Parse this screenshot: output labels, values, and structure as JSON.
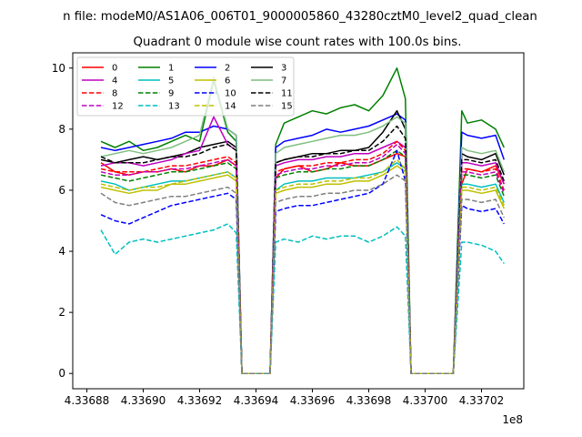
{
  "chart_data": {
    "type": "line",
    "suptitle": "n file: modeM0/AS1A06_006T01_9000005860_43280cztM0_level2_quad_clean",
    "title": "Quadrant 0 module wise count rates with 100.0s bins.",
    "xlabel": "",
    "ylabel": "",
    "x_offset_label": "1e8",
    "xlim": [
      433687500,
      433703500
    ],
    "ylim": [
      -0.5,
      10.5
    ],
    "xticks": [
      {
        "v": 433688000,
        "label": "4.33688"
      },
      {
        "v": 433690000,
        "label": "4.33690"
      },
      {
        "v": 433692000,
        "label": "4.33692"
      },
      {
        "v": 433694000,
        "label": "4.33694"
      },
      {
        "v": 433696000,
        "label": "4.33696"
      },
      {
        "v": 433698000,
        "label": "4.33698"
      },
      {
        "v": 433700000,
        "label": "4.33700"
      },
      {
        "v": 433702000,
        "label": "4.33702"
      }
    ],
    "yticks": [
      {
        "v": 0,
        "label": "0"
      },
      {
        "v": 2,
        "label": "2"
      },
      {
        "v": 4,
        "label": "4"
      },
      {
        "v": 6,
        "label": "6"
      },
      {
        "v": 8,
        "label": "8"
      },
      {
        "v": 10,
        "label": "10"
      }
    ],
    "legend": {
      "position": "top-left",
      "columns": 4
    },
    "grid": false,
    "x": [
      433688500,
      433689000,
      433689500,
      433690000,
      433690500,
      433691000,
      433691500,
      433692000,
      433692500,
      433693000,
      433693300,
      433693500,
      433694000,
      433694500,
      433694700,
      433695000,
      433695500,
      433696000,
      433696500,
      433697000,
      433697500,
      433698000,
      433698500,
      433699000,
      433699300,
      433699500,
      433700000,
      433700500,
      433701000,
      433701300,
      433701500,
      433702000,
      433702500,
      433702800
    ],
    "series": [
      {
        "name": "0",
        "color": "#ff0000",
        "dash": "solid",
        "values": [
          6.9,
          6.6,
          6.5,
          6.6,
          6.6,
          6.7,
          6.6,
          6.8,
          6.8,
          7.0,
          6.8,
          0,
          0,
          0,
          6.4,
          6.7,
          6.8,
          6.6,
          6.7,
          6.9,
          6.8,
          6.8,
          7.0,
          7.2,
          7.1,
          0,
          0,
          0,
          0,
          6.2,
          6.7,
          6.6,
          6.8,
          6.2
        ]
      },
      {
        "name": "1",
        "color": "#008000",
        "dash": "solid",
        "values": [
          7.6,
          7.4,
          7.6,
          7.3,
          7.4,
          7.6,
          7.8,
          7.6,
          9.6,
          7.9,
          7.6,
          0,
          0,
          0,
          7.5,
          8.2,
          8.4,
          8.6,
          8.5,
          8.7,
          8.8,
          8.6,
          9.1,
          10.0,
          9.0,
          0,
          0,
          0,
          0,
          8.6,
          8.2,
          8.3,
          8.0,
          7.4
        ]
      },
      {
        "name": "2",
        "color": "#0000ff",
        "dash": "solid",
        "values": [
          7.4,
          7.3,
          7.4,
          7.5,
          7.6,
          7.7,
          7.9,
          7.9,
          8.1,
          8.0,
          7.8,
          0,
          0,
          0,
          7.4,
          7.6,
          7.7,
          7.8,
          8.0,
          7.9,
          8.0,
          8.1,
          8.3,
          8.5,
          8.3,
          0,
          0,
          0,
          0,
          7.9,
          7.8,
          7.7,
          7.8,
          7.0
        ]
      },
      {
        "name": "3",
        "color": "#000000",
        "dash": "solid",
        "values": [
          7.0,
          6.9,
          7.0,
          7.1,
          7.0,
          7.1,
          7.2,
          7.4,
          7.5,
          7.6,
          7.4,
          0,
          0,
          0,
          6.9,
          7.0,
          7.1,
          7.2,
          7.2,
          7.3,
          7.3,
          7.4,
          7.9,
          8.6,
          8.0,
          0,
          0,
          0,
          0,
          7.2,
          7.1,
          7.0,
          7.2,
          6.5
        ]
      },
      {
        "name": "4",
        "color": "#bf00bf",
        "dash": "solid",
        "values": [
          6.8,
          6.9,
          6.9,
          6.8,
          6.9,
          7.0,
          7.2,
          7.3,
          8.4,
          7.5,
          7.3,
          0,
          0,
          0,
          6.8,
          6.9,
          7.0,
          7.0,
          7.1,
          7.1,
          7.2,
          7.2,
          7.4,
          7.6,
          7.4,
          0,
          0,
          0,
          0,
          6.9,
          6.9,
          6.8,
          6.9,
          6.2
        ]
      },
      {
        "name": "5",
        "color": "#00bfbf",
        "dash": "solid",
        "values": [
          6.3,
          6.2,
          6.0,
          6.1,
          6.2,
          6.3,
          6.3,
          6.4,
          6.5,
          6.6,
          6.4,
          0,
          0,
          0,
          6.0,
          6.2,
          6.3,
          6.3,
          6.4,
          6.4,
          6.4,
          6.5,
          6.6,
          6.9,
          6.7,
          0,
          0,
          0,
          0,
          6.2,
          6.2,
          6.1,
          6.2,
          5.6
        ]
      },
      {
        "name": "6",
        "color": "#bfbf00",
        "dash": "solid",
        "values": [
          6.1,
          6.0,
          5.9,
          6.0,
          6.0,
          6.2,
          6.2,
          6.3,
          6.4,
          6.5,
          6.3,
          0,
          0,
          0,
          5.9,
          6.0,
          6.1,
          6.1,
          6.2,
          6.2,
          6.3,
          6.3,
          6.5,
          6.8,
          6.6,
          0,
          0,
          0,
          0,
          6.0,
          6.0,
          5.9,
          6.0,
          5.4
        ]
      },
      {
        "name": "7",
        "color": "#7fbf7f",
        "dash": "solid",
        "values": [
          7.1,
          7.2,
          7.3,
          7.2,
          7.3,
          7.4,
          7.6,
          7.8,
          9.7,
          8.0,
          7.8,
          0,
          0,
          0,
          7.2,
          7.4,
          7.5,
          7.6,
          7.7,
          7.8,
          7.8,
          7.9,
          8.1,
          8.4,
          8.2,
          0,
          0,
          0,
          0,
          7.4,
          7.3,
          7.2,
          7.3,
          6.6
        ]
      },
      {
        "name": "8",
        "color": "#ff0000",
        "dash": "dashed",
        "values": [
          6.7,
          6.6,
          6.6,
          6.6,
          6.7,
          6.8,
          6.8,
          6.9,
          7.0,
          7.1,
          6.9,
          0,
          0,
          0,
          6.6,
          6.7,
          6.8,
          6.8,
          6.9,
          6.9,
          7.0,
          7.0,
          7.2,
          7.6,
          7.3,
          0,
          0,
          0,
          0,
          6.7,
          6.7,
          6.6,
          6.7,
          6.0
        ]
      },
      {
        "name": "9",
        "color": "#008000",
        "dash": "dashed",
        "values": [
          6.5,
          6.4,
          6.3,
          6.4,
          6.5,
          6.6,
          6.6,
          6.7,
          6.8,
          6.9,
          6.7,
          0,
          0,
          0,
          6.4,
          6.5,
          6.6,
          6.6,
          6.7,
          6.7,
          6.8,
          6.8,
          7.0,
          7.3,
          7.1,
          0,
          0,
          0,
          0,
          6.5,
          6.5,
          6.4,
          6.5,
          5.8
        ]
      },
      {
        "name": "10",
        "color": "#0000ff",
        "dash": "dashed",
        "values": [
          5.2,
          5.0,
          4.9,
          5.1,
          5.3,
          5.5,
          5.6,
          5.7,
          5.8,
          5.9,
          5.7,
          0,
          0,
          0,
          5.3,
          5.4,
          5.5,
          5.5,
          5.6,
          5.7,
          5.8,
          5.9,
          6.2,
          7.3,
          6.3,
          0,
          0,
          0,
          0,
          5.5,
          5.4,
          5.3,
          5.4,
          4.9
        ]
      },
      {
        "name": "11",
        "color": "#000000",
        "dash": "dashed",
        "values": [
          7.1,
          6.9,
          6.9,
          6.9,
          7.0,
          7.1,
          7.1,
          7.2,
          7.4,
          7.5,
          7.3,
          0,
          0,
          0,
          6.9,
          7.0,
          7.1,
          7.1,
          7.2,
          7.2,
          7.3,
          7.3,
          7.6,
          8.1,
          7.7,
          0,
          0,
          0,
          0,
          7.0,
          7.0,
          6.9,
          7.0,
          6.3
        ]
      },
      {
        "name": "12",
        "color": "#bf00bf",
        "dash": "dashed",
        "values": [
          6.6,
          6.5,
          6.5,
          6.6,
          6.6,
          6.7,
          6.7,
          6.8,
          6.9,
          7.0,
          6.8,
          0,
          0,
          0,
          6.5,
          6.6,
          6.7,
          6.7,
          6.8,
          6.8,
          6.9,
          6.9,
          7.1,
          7.5,
          7.2,
          0,
          0,
          0,
          0,
          6.6,
          6.6,
          6.5,
          6.6,
          5.9
        ]
      },
      {
        "name": "13",
        "color": "#00bfbf",
        "dash": "dashed",
        "values": [
          4.7,
          3.9,
          4.3,
          4.4,
          4.3,
          4.4,
          4.5,
          4.6,
          4.7,
          4.9,
          4.6,
          0,
          0,
          0,
          4.3,
          4.4,
          4.3,
          4.5,
          4.4,
          4.5,
          4.5,
          4.3,
          4.5,
          4.8,
          4.5,
          0,
          0,
          0,
          0,
          4.3,
          4.3,
          4.2,
          4.0,
          3.6
        ]
      },
      {
        "name": "14",
        "color": "#bfbf00",
        "dash": "dashed",
        "values": [
          6.2,
          6.1,
          6.0,
          6.1,
          6.1,
          6.2,
          6.3,
          6.4,
          6.5,
          6.6,
          6.4,
          0,
          0,
          0,
          6.0,
          6.1,
          6.2,
          6.2,
          6.3,
          6.3,
          6.4,
          6.4,
          6.6,
          7.0,
          6.7,
          0,
          0,
          0,
          0,
          6.1,
          6.1,
          6.0,
          6.1,
          5.5
        ]
      },
      {
        "name": "15",
        "color": "#7f7f7f",
        "dash": "dashed",
        "values": [
          5.9,
          5.6,
          5.5,
          5.6,
          5.7,
          5.8,
          5.8,
          5.9,
          6.0,
          6.1,
          5.9,
          0,
          0,
          0,
          5.6,
          5.7,
          5.8,
          5.8,
          5.9,
          5.9,
          6.0,
          6.0,
          6.2,
          6.5,
          6.3,
          0,
          0,
          0,
          0,
          5.7,
          5.7,
          5.6,
          5.7,
          5.1
        ]
      }
    ]
  }
}
